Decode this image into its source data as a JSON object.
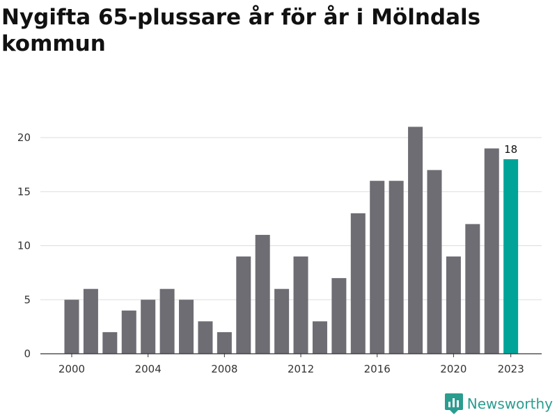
{
  "chart_data": {
    "type": "bar",
    "title": "Nygifta 65-plussare år för år i Mölndals kommun",
    "xlabel": "",
    "ylabel": "",
    "categories": [
      "2000",
      "2001",
      "2002",
      "2003",
      "2004",
      "2005",
      "2006",
      "2007",
      "2008",
      "2009",
      "2010",
      "2011",
      "2012",
      "2013",
      "2014",
      "2015",
      "2016",
      "2017",
      "2018",
      "2019",
      "2020",
      "2021",
      "2022",
      "2023"
    ],
    "values": [
      5,
      6,
      2,
      4,
      5,
      6,
      5,
      3,
      2,
      9,
      11,
      6,
      9,
      3,
      7,
      13,
      16,
      16,
      21,
      17,
      9,
      12,
      19,
      18
    ],
    "ylim": [
      0,
      20
    ],
    "yticks": [
      "0",
      "5",
      "10",
      "15",
      "20"
    ],
    "xticks": [
      "2000",
      "2004",
      "2008",
      "2012",
      "2016",
      "2020",
      "2023"
    ],
    "highlight": {
      "category": "2023",
      "label": "18",
      "color": "#00a398"
    },
    "bar_color": "#6e6d73",
    "grid": true
  },
  "brand": {
    "name": "Newsworthy",
    "icon": "newsworthy-logo-icon",
    "color": "#2a9d8f"
  }
}
